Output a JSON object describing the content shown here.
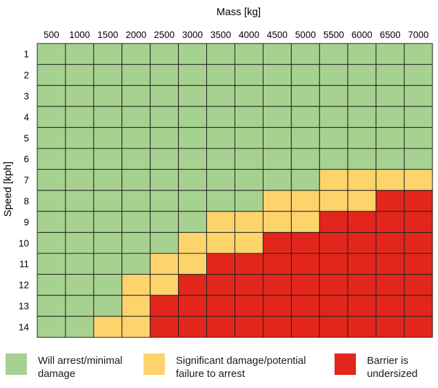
{
  "chart_data": {
    "type": "heatmap",
    "xlabel": "Mass [kg]",
    "ylabel": "Speed [kph]",
    "x_categories": [
      "500",
      "1000",
      "1500",
      "2000",
      "2500",
      "3000",
      "3500",
      "4000",
      "4500",
      "5000",
      "5500",
      "6000",
      "6500",
      "7000"
    ],
    "y_categories": [
      "1",
      "2",
      "3",
      "4",
      "5",
      "6",
      "7",
      "8",
      "9",
      "10",
      "11",
      "12",
      "13",
      "14"
    ],
    "value_legend": {
      "0": "Will arrest/minimal damage",
      "1": "Significant damage/potential failure to arrest",
      "2": "Barrier is undersized"
    },
    "values": [
      [
        0,
        0,
        0,
        0,
        0,
        0,
        0,
        0,
        0,
        0,
        0,
        0,
        0,
        0
      ],
      [
        0,
        0,
        0,
        0,
        0,
        0,
        0,
        0,
        0,
        0,
        0,
        0,
        0,
        0
      ],
      [
        0,
        0,
        0,
        0,
        0,
        0,
        0,
        0,
        0,
        0,
        0,
        0,
        0,
        0
      ],
      [
        0,
        0,
        0,
        0,
        0,
        0,
        0,
        0,
        0,
        0,
        0,
        0,
        0,
        0
      ],
      [
        0,
        0,
        0,
        0,
        0,
        0,
        0,
        0,
        0,
        0,
        0,
        0,
        0,
        0
      ],
      [
        0,
        0,
        0,
        0,
        0,
        0,
        0,
        0,
        0,
        0,
        0,
        0,
        0,
        0
      ],
      [
        0,
        0,
        0,
        0,
        0,
        0,
        0,
        0,
        0,
        0,
        1,
        1,
        1,
        1
      ],
      [
        0,
        0,
        0,
        0,
        0,
        0,
        0,
        0,
        1,
        1,
        1,
        1,
        2,
        2
      ],
      [
        0,
        0,
        0,
        0,
        0,
        0,
        1,
        1,
        1,
        1,
        2,
        2,
        2,
        2
      ],
      [
        0,
        0,
        0,
        0,
        0,
        1,
        1,
        1,
        2,
        2,
        2,
        2,
        2,
        2
      ],
      [
        0,
        0,
        0,
        0,
        1,
        1,
        2,
        2,
        2,
        2,
        2,
        2,
        2,
        2
      ],
      [
        0,
        0,
        0,
        1,
        1,
        2,
        2,
        2,
        2,
        2,
        2,
        2,
        2,
        2
      ],
      [
        0,
        0,
        0,
        1,
        2,
        2,
        2,
        2,
        2,
        2,
        2,
        2,
        2,
        2
      ],
      [
        0,
        0,
        1,
        1,
        2,
        2,
        2,
        2,
        2,
        2,
        2,
        2,
        2,
        2
      ]
    ],
    "colors": {
      "0": "#a7d190",
      "1": "#fdd36c",
      "2": "#e2261c",
      "grid": "#222222"
    },
    "grid": true
  },
  "legend": [
    {
      "key": "0",
      "label": "Will arrest/minimal damage"
    },
    {
      "key": "1",
      "label": "Significant damage/potential failure to arrest"
    },
    {
      "key": "2",
      "label": "Barrier is undersized"
    }
  ]
}
